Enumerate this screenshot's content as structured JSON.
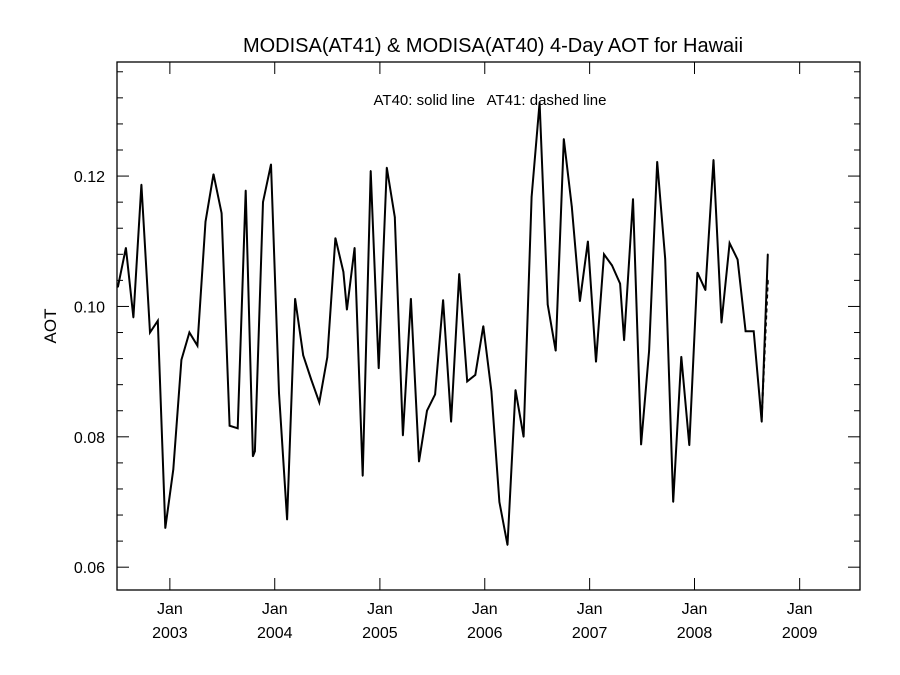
{
  "chart_data": {
    "type": "line",
    "title": "MODISA(AT41) & MODISA(AT40) 4-Day AOT for Hawaii",
    "annotation": "AT40: solid line   AT41: dashed line",
    "ylabel": "AOT",
    "xlabel": "",
    "x_range": [
      "2002-07-01",
      "2009-07-30"
    ],
    "ylim": [
      0.0565,
      0.1375
    ],
    "y_ticks": [
      0.06,
      0.08,
      0.1,
      0.12
    ],
    "y_tick_labels": [
      "0.06",
      "0.08",
      "0.10",
      "0.12"
    ],
    "x_ticks": [
      "2003-01-01",
      "2004-01-01",
      "2005-01-01",
      "2006-01-01",
      "2007-01-01",
      "2008-01-01",
      "2009-01-01"
    ],
    "x_tick_labels": [
      {
        "month": "Jan",
        "year": "2003"
      },
      {
        "month": "Jan",
        "year": "2004"
      },
      {
        "month": "Jan",
        "year": "2005"
      },
      {
        "month": "Jan",
        "year": "2006"
      },
      {
        "month": "Jan",
        "year": "2007"
      },
      {
        "month": "Jan",
        "year": "2008"
      },
      {
        "month": "Jan",
        "year": "2009"
      }
    ],
    "grid": false,
    "series": [
      {
        "name": "AT40",
        "style": "solid",
        "color": "#000000",
        "points": [
          [
            "2002-07-04",
            0.103
          ],
          [
            "2002-08-01",
            0.109
          ],
          [
            "2002-08-27",
            0.0983
          ],
          [
            "2002-09-24",
            0.1187
          ],
          [
            "2002-10-24",
            0.096
          ],
          [
            "2002-11-20",
            0.0978
          ],
          [
            "2002-12-16",
            0.066
          ],
          [
            "2003-01-13",
            0.075
          ],
          [
            "2003-02-10",
            0.0918
          ],
          [
            "2003-03-10",
            0.096
          ],
          [
            "2003-04-07",
            0.094
          ],
          [
            "2003-05-05",
            0.113
          ],
          [
            "2003-06-02",
            0.1203
          ],
          [
            "2003-06-30",
            0.1143
          ],
          [
            "2003-07-28",
            0.0817
          ],
          [
            "2003-08-25",
            0.0813
          ],
          [
            "2003-09-22",
            0.1178
          ],
          [
            "2003-10-17",
            0.077
          ],
          [
            "2003-10-24",
            0.0778
          ],
          [
            "2003-11-21",
            0.116
          ],
          [
            "2003-12-19",
            0.1218
          ],
          [
            "2004-01-16",
            0.0867
          ],
          [
            "2004-02-13",
            0.0673
          ],
          [
            "2004-03-12",
            0.1012
          ],
          [
            "2004-04-09",
            0.0925
          ],
          [
            "2004-05-07",
            0.0888
          ],
          [
            "2004-06-04",
            0.0853
          ],
          [
            "2004-07-02",
            0.0922
          ],
          [
            "2004-07-30",
            0.1105
          ],
          [
            "2004-08-27",
            0.1053
          ],
          [
            "2004-09-08",
            0.0995
          ],
          [
            "2004-10-05",
            0.109
          ],
          [
            "2004-11-02",
            0.074
          ],
          [
            "2004-11-30",
            0.1208
          ],
          [
            "2004-12-28",
            0.0905
          ],
          [
            "2005-01-25",
            0.1213
          ],
          [
            "2005-02-22",
            0.1137
          ],
          [
            "2005-03-22",
            0.0802
          ],
          [
            "2005-04-19",
            0.1012
          ],
          [
            "2005-05-17",
            0.0762
          ],
          [
            "2005-06-14",
            0.084
          ],
          [
            "2005-07-12",
            0.0865
          ],
          [
            "2005-08-09",
            0.101
          ],
          [
            "2005-09-06",
            0.0823
          ],
          [
            "2005-10-04",
            0.105
          ],
          [
            "2005-11-01",
            0.0885
          ],
          [
            "2005-11-29",
            0.0895
          ],
          [
            "2005-12-27",
            0.097
          ],
          [
            "2006-01-24",
            0.087
          ],
          [
            "2006-02-21",
            0.07
          ],
          [
            "2006-03-21",
            0.0634
          ],
          [
            "2006-04-18",
            0.0872
          ],
          [
            "2006-05-16",
            0.08
          ],
          [
            "2006-06-13",
            0.1168
          ],
          [
            "2006-07-11",
            0.1313
          ],
          [
            "2006-08-08",
            0.1003
          ],
          [
            "2006-09-05",
            0.0932
          ],
          [
            "2006-10-03",
            0.1257
          ],
          [
            "2006-10-31",
            0.1153
          ],
          [
            "2006-11-28",
            0.1008
          ],
          [
            "2006-12-26",
            0.11
          ],
          [
            "2007-01-23",
            0.0915
          ],
          [
            "2007-02-20",
            0.108
          ],
          [
            "2007-03-20",
            0.1063
          ],
          [
            "2007-04-17",
            0.1035
          ],
          [
            "2007-05-01",
            0.0948
          ],
          [
            "2007-06-01",
            0.1165
          ],
          [
            "2007-06-29",
            0.0788
          ],
          [
            "2007-07-27",
            0.0932
          ],
          [
            "2007-08-24",
            0.1222
          ],
          [
            "2007-09-21",
            0.1073
          ],
          [
            "2007-10-19",
            0.07
          ],
          [
            "2007-11-16",
            0.0923
          ],
          [
            "2007-12-14",
            0.0787
          ],
          [
            "2008-01-11",
            0.1052
          ],
          [
            "2008-02-08",
            0.1025
          ],
          [
            "2008-03-07",
            0.1225
          ],
          [
            "2008-04-04",
            0.0975
          ],
          [
            "2008-05-02",
            0.1097
          ],
          [
            "2008-05-30",
            0.1072
          ],
          [
            "2008-06-27",
            0.0962
          ],
          [
            "2008-07-25",
            0.0962
          ],
          [
            "2008-08-22",
            0.0823
          ],
          [
            "2008-09-12",
            0.108
          ]
        ]
      },
      {
        "name": "AT41",
        "style": "dashed",
        "color": "#000000",
        "points": [
          [
            "2008-08-22",
            0.083
          ],
          [
            "2008-09-12",
            0.104
          ]
        ]
      }
    ]
  }
}
